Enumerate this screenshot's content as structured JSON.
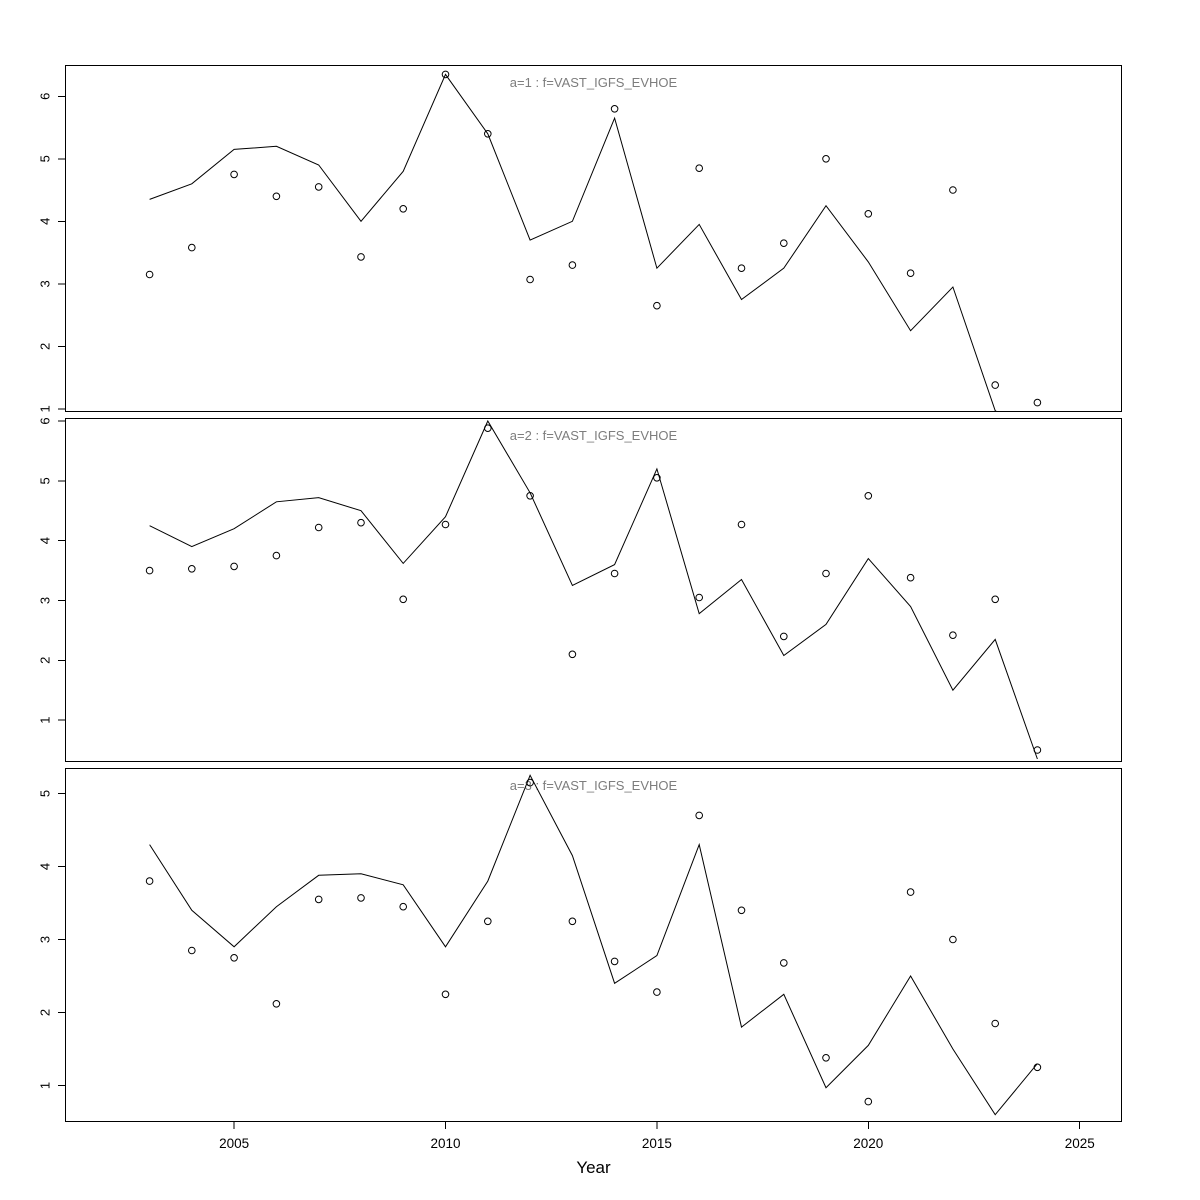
{
  "figure": {
    "background": "#ffffff",
    "description": "Three stacked base-R style line plots with open-circle observation points sharing one Year axis"
  },
  "colors": {
    "line": "#000000",
    "point": "#000000",
    "border": "#000000",
    "title": "#7d7d7d",
    "tick_label": "#000000"
  },
  "x_axis": {
    "label": "Year",
    "ticks": [
      2005,
      2010,
      2015,
      2020,
      2025
    ],
    "xlim": [
      2001,
      2026
    ]
  },
  "chart_data": [
    {
      "type": "line",
      "title": "a=1  :  f=VAST_IGFS_EVHOE",
      "point_marker": "open-circle",
      "ylim": [
        0.95,
        6.5
      ],
      "yticks": [
        1,
        2,
        3,
        4,
        5,
        6
      ],
      "x": [
        2003,
        2004,
        2005,
        2006,
        2007,
        2008,
        2009,
        2010,
        2011,
        2012,
        2013,
        2014,
        2015,
        2016,
        2017,
        2018,
        2019,
        2020,
        2021,
        2022,
        2023,
        2024
      ],
      "series": [
        {
          "name": "fit-line",
          "style": "line",
          "values": [
            4.35,
            4.6,
            5.15,
            5.2,
            4.9,
            4.0,
            4.8,
            6.35,
            5.4,
            3.7,
            4.0,
            5.65,
            3.25,
            3.95,
            2.75,
            3.25,
            4.25,
            3.35,
            2.25,
            2.95,
            0.97,
            0.55
          ]
        },
        {
          "name": "observations",
          "style": "points",
          "values": [
            3.15,
            3.58,
            4.75,
            4.4,
            4.55,
            3.43,
            4.2,
            6.35,
            5.4,
            3.07,
            3.3,
            5.8,
            2.65,
            4.85,
            3.25,
            3.65,
            5.0,
            4.12,
            3.17,
            4.5,
            1.38,
            1.1
          ]
        }
      ]
    },
    {
      "type": "line",
      "title": "a=2  :  f=VAST_IGFS_EVHOE",
      "point_marker": "open-circle",
      "ylim": [
        0.3,
        6.05
      ],
      "yticks": [
        1,
        2,
        3,
        4,
        5,
        6
      ],
      "x": [
        2003,
        2004,
        2005,
        2006,
        2007,
        2008,
        2009,
        2010,
        2011,
        2012,
        2013,
        2014,
        2015,
        2016,
        2017,
        2018,
        2019,
        2020,
        2021,
        2022,
        2023,
        2024
      ],
      "series": [
        {
          "name": "fit-line",
          "style": "line",
          "values": [
            4.25,
            3.9,
            4.2,
            4.65,
            4.72,
            4.5,
            3.62,
            4.4,
            6.0,
            4.8,
            3.25,
            3.6,
            5.2,
            2.78,
            3.35,
            2.08,
            2.6,
            3.7,
            2.9,
            1.5,
            2.35,
            0.35
          ]
        },
        {
          "name": "observations",
          "style": "points",
          "values": [
            3.5,
            3.53,
            3.57,
            3.75,
            4.22,
            4.3,
            3.02,
            4.27,
            5.88,
            4.75,
            2.1,
            3.45,
            5.05,
            3.05,
            4.27,
            2.4,
            3.45,
            4.75,
            3.38,
            2.42,
            3.02,
            0.5
          ]
        }
      ]
    },
    {
      "type": "line",
      "title": "a=3  :  f=VAST_IGFS_EVHOE",
      "point_marker": "open-circle",
      "ylim": [
        0.5,
        5.35
      ],
      "yticks": [
        1,
        2,
        3,
        4,
        5
      ],
      "x": [
        2003,
        2004,
        2005,
        2006,
        2007,
        2008,
        2009,
        2010,
        2011,
        2012,
        2013,
        2014,
        2015,
        2016,
        2017,
        2018,
        2019,
        2020,
        2021,
        2022,
        2023,
        2024
      ],
      "series": [
        {
          "name": "fit-line",
          "style": "line",
          "values": [
            4.3,
            3.4,
            2.9,
            3.45,
            3.88,
            3.9,
            3.75,
            2.9,
            3.8,
            5.25,
            4.15,
            2.4,
            2.78,
            4.3,
            1.8,
            2.25,
            0.97,
            1.55,
            2.5,
            1.5,
            0.6,
            1.3
          ]
        },
        {
          "name": "observations",
          "style": "points",
          "values": [
            3.8,
            2.85,
            2.75,
            2.12,
            3.55,
            3.57,
            3.45,
            2.25,
            3.25,
            5.15,
            3.25,
            2.7,
            2.28,
            4.7,
            3.4,
            2.68,
            1.38,
            0.78,
            3.65,
            3.0,
            1.85,
            1.25
          ]
        }
      ]
    }
  ]
}
